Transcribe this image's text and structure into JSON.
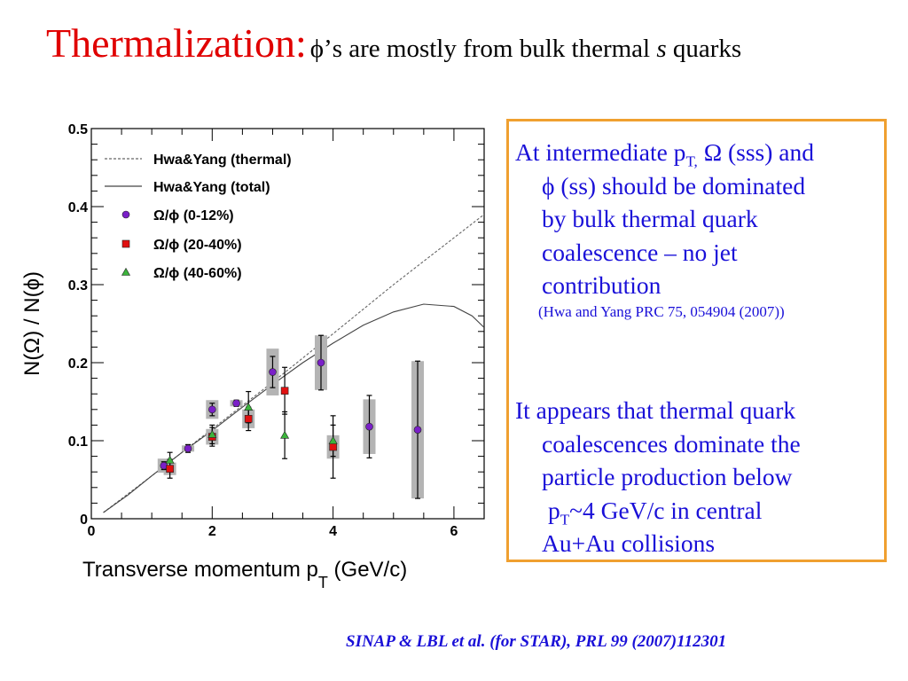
{
  "slide": {
    "title_main": "Thermalization:",
    "title_phi": "ϕ",
    "title_mid": "’s are mostly from bulk thermal ",
    "title_s": "s",
    "title_end": " quarks",
    "box": {
      "p1_l1_a": "At intermediate p",
      "p1_l1_sub": "T,",
      "p1_l1_b": " Ω (sss) and",
      "p1_l2": "ϕ (ss) should be dominated",
      "p1_l3": "by bulk thermal quark",
      "p1_l4": "coalescence – no jet",
      "p1_l5": "contribution",
      "p1_ref": "(Hwa and Yang PRC 75, 054904 (2007))",
      "p2_l1": "It appears that thermal quark",
      "p2_l2": "coalescences dominate the",
      "p2_l3": "particle production below",
      "p2_l4_a": "p",
      "p2_l4_sub": "T",
      "p2_l4_b": "~4 GeV/c in central",
      "p2_l5": "Au+Au collisions"
    },
    "citation": "SINAP & LBL et al. (for STAR), PRL 99 (2007)112301",
    "accent_color": "#e00000",
    "text_color": "#1a10d8",
    "box_border_color": "#f0a030"
  },
  "chart_data": {
    "type": "scatter",
    "xlabel": "Transverse momentum p",
    "xlabel_sub": "T",
    "xlabel_unit": " (GeV/c)",
    "ylabel": "N(Ω) / N(ϕ)",
    "xlim": [
      0,
      6.5
    ],
    "ylim": [
      0,
      0.5
    ],
    "x_ticks": [
      "0",
      "2",
      "4",
      "6"
    ],
    "y_ticks": [
      "0",
      "0.1",
      "0.2",
      "0.3",
      "0.4",
      "0.5"
    ],
    "legend_position": "top-left",
    "series": [
      {
        "name": "Hwa&Yang (thermal)",
        "kind": "dashed-line",
        "color": "#666666",
        "x": [
          0.2,
          1.0,
          2.0,
          3.0,
          4.0,
          5.0,
          6.0,
          6.5
        ],
        "y": [
          0.008,
          0.055,
          0.115,
          0.175,
          0.237,
          0.3,
          0.36,
          0.39
        ]
      },
      {
        "name": "Hwa&Yang (total)",
        "kind": "solid-line",
        "color": "#444444",
        "x": [
          0.2,
          0.6,
          1.0,
          1.5,
          2.0,
          2.5,
          3.0,
          3.5,
          4.0,
          4.5,
          5.0,
          5.5,
          6.0,
          6.3,
          6.5
        ],
        "y": [
          0.008,
          0.03,
          0.055,
          0.085,
          0.113,
          0.143,
          0.172,
          0.2,
          0.225,
          0.248,
          0.265,
          0.275,
          0.272,
          0.26,
          0.245
        ]
      },
      {
        "name": "Ω/ϕ (0-12%)",
        "kind": "circle",
        "color": "#7a1fc8",
        "points": [
          {
            "x": 1.2,
            "y": 0.068,
            "err": 0.005,
            "sys": 0.009
          },
          {
            "x": 1.6,
            "y": 0.09,
            "err": 0.005,
            "sys": 0.004
          },
          {
            "x": 2.0,
            "y": 0.14,
            "err": 0.008,
            "sys": 0.012
          },
          {
            "x": 2.4,
            "y": 0.148,
            "err": 0.004,
            "sys": 0.004
          },
          {
            "x": 3.0,
            "y": 0.188,
            "err": 0.02,
            "sys": 0.03
          },
          {
            "x": 3.8,
            "y": 0.2,
            "err": 0.035,
            "sys": 0.035
          },
          {
            "x": 4.6,
            "y": 0.118,
            "err": 0.04,
            "sys": 0.035
          },
          {
            "x": 5.4,
            "y": 0.114,
            "err": 0.088,
            "sys": 0.088
          }
        ]
      },
      {
        "name": "Ω/ϕ (20-40%)",
        "kind": "square",
        "color": "#e01010",
        "points": [
          {
            "x": 1.3,
            "y": 0.064,
            "err": 0.012,
            "sys": 0.008
          },
          {
            "x": 2.0,
            "y": 0.105,
            "err": 0.012,
            "sys": 0.01
          },
          {
            "x": 2.6,
            "y": 0.128,
            "err": 0.015,
            "sys": 0.012
          },
          {
            "x": 3.2,
            "y": 0.164,
            "err": 0.03,
            "sys": 0.0
          },
          {
            "x": 4.0,
            "y": 0.092,
            "err": 0.04,
            "sys": 0.015
          }
        ]
      },
      {
        "name": "Ω/ϕ (40-60%)",
        "kind": "triangle",
        "color": "#3cb43c",
        "points": [
          {
            "x": 1.3,
            "y": 0.075,
            "err": 0.01,
            "sys": 0.0
          },
          {
            "x": 2.0,
            "y": 0.108,
            "err": 0.012,
            "sys": 0.0
          },
          {
            "x": 2.6,
            "y": 0.143,
            "err": 0.02,
            "sys": 0.0
          },
          {
            "x": 3.2,
            "y": 0.107,
            "err": 0.03,
            "sys": 0.0
          },
          {
            "x": 4.0,
            "y": 0.1,
            "err": 0.02,
            "sys": 0.0
          }
        ]
      }
    ]
  }
}
